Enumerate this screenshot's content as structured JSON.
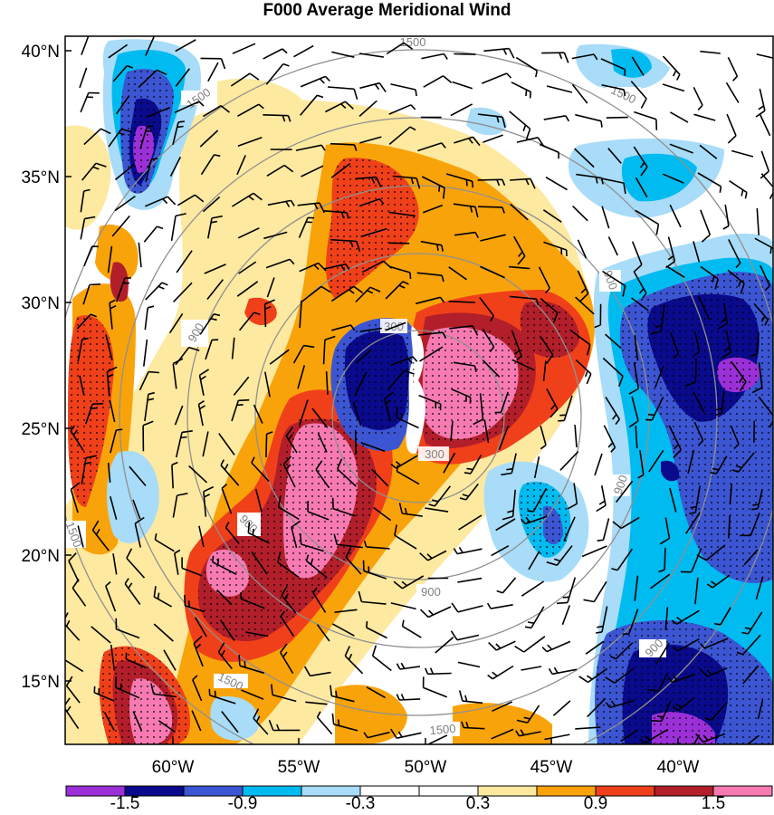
{
  "title": "F000 Average Meridional Wind",
  "map": {
    "lat_ticks": [
      "40°N",
      "35°N",
      "30°N",
      "25°N",
      "20°N",
      "15°N"
    ],
    "lon_ticks": [
      "60°W",
      "55°W",
      "50°W",
      "45°W",
      "40°W"
    ],
    "contour_labels": [
      "1500",
      "1500",
      "1500",
      "1500",
      "1500",
      "1500",
      "900",
      "900",
      "900",
      "900",
      "900",
      "900",
      "900",
      "300",
      "300"
    ]
  },
  "colorbar": {
    "colors": [
      "#9b30d8",
      "#0a0a8c",
      "#3c55d2",
      "#00bbf0",
      "#a8dcf8",
      "#ffffff",
      "#ffffff",
      "#fde9a0",
      "#f9a30a",
      "#f0401a",
      "#b21f2a",
      "#f77bb2"
    ],
    "labels": [
      "-1.5",
      "-0.9",
      "-0.3",
      "0.3",
      "0.9",
      "1.5"
    ]
  },
  "colors": {
    "strong_negative": "#0a0a8c",
    "negative": "#3c55d2",
    "weak_negative": "#00bbf0",
    "weak_positive": "#f9a30a",
    "positive": "#f0401a",
    "strong_positive": "#f77bb2",
    "contours": "#909090",
    "barbs": "#000000"
  }
}
